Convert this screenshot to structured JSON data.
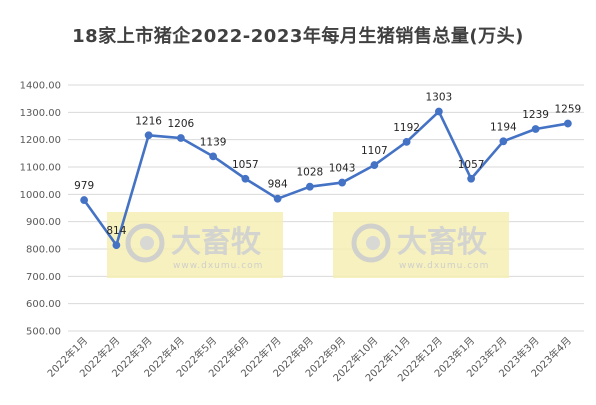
{
  "chart_data": {
    "type": "line",
    "title": "18家上市猪企2022-2023年每月生猪销售总量(万头)",
    "xlabel": "",
    "ylabel": "",
    "categories": [
      "2022年1月",
      "2022年2月",
      "2022年3月",
      "2022年4月",
      "2022年5月",
      "2022年6月",
      "2022年7月",
      "2022年8月",
      "2022年9月",
      "2022年10月",
      "2022年11月",
      "2022年12月",
      "2023年1月",
      "2023年2月",
      "2023年3月",
      "2023年4月"
    ],
    "series": [
      {
        "values": [
          979,
          814,
          1216,
          1206,
          1139,
          1057,
          984,
          1028,
          1043,
          1107,
          1192,
          1303,
          1057,
          1194,
          1239,
          1259
        ]
      }
    ],
    "ylim": [
      500,
      1400
    ],
    "yticks": [
      500,
      600,
      700,
      800,
      900,
      1000,
      1100,
      1200,
      1300,
      1400
    ],
    "ytick_labels": [
      "500.00",
      "600.00",
      "700.00",
      "800.00",
      "900.00",
      "1000.00",
      "1100.00",
      "1200.00",
      "1300.00",
      "1400.00"
    ],
    "grid": true,
    "legend": "none",
    "colors": {
      "line": "#4472c4",
      "marker": "#4472c4",
      "grid": "#d9d9d9"
    }
  },
  "watermark": {
    "brand": "大畜牧",
    "url": "www.dxumu.com"
  }
}
